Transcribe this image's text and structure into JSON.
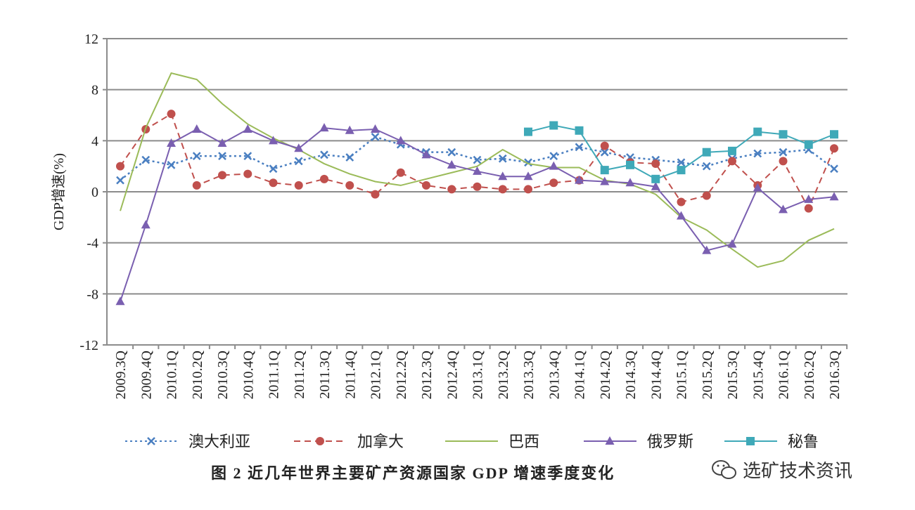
{
  "chart_data": {
    "type": "line",
    "title": "",
    "ylabel": "GDP增速(%)",
    "xlabel": "",
    "ylim": [
      -12,
      12
    ],
    "yticks": [
      12,
      8,
      4,
      0,
      -4,
      -8,
      -12
    ],
    "grid": true,
    "legend_position": "bottom",
    "categories": [
      "2009.3Q",
      "2009.4Q",
      "2010.1Q",
      "2010.2Q",
      "2010.3Q",
      "2010.4Q",
      "2011.1Q",
      "2011.2Q",
      "2011.3Q",
      "2011.4Q",
      "2012.1Q",
      "2012.2Q",
      "2012.3Q",
      "2012.4Q",
      "2013.1Q",
      "2013.2Q",
      "2013.3Q",
      "2013.4Q",
      "2014.1Q",
      "2014.2Q",
      "2014.3Q",
      "2014.4Q",
      "2015.1Q",
      "2015.2Q",
      "2015.3Q",
      "2015.4Q",
      "2016.1Q",
      "2016.2Q",
      "2016.3Q"
    ],
    "series": [
      {
        "name": "澳大利亚",
        "color": "#4a7fc1",
        "dash": "3,4",
        "marker": "x",
        "values": [
          0.9,
          2.5,
          2.1,
          2.8,
          2.8,
          2.8,
          1.8,
          2.4,
          2.9,
          2.7,
          4.3,
          3.7,
          3.1,
          3.1,
          2.5,
          2.6,
          2.3,
          2.8,
          3.5,
          3.1,
          2.7,
          2.5,
          2.3,
          2.0,
          2.6,
          3.0,
          3.1,
          3.3,
          1.8
        ]
      },
      {
        "name": "加拿大",
        "color": "#c0504d",
        "dash": "9,6",
        "marker": "circle",
        "values": [
          2.0,
          4.9,
          6.1,
          0.5,
          1.3,
          1.4,
          0.7,
          0.5,
          1.0,
          0.5,
          -0.2,
          1.5,
          0.5,
          0.2,
          0.4,
          0.2,
          0.2,
          0.7,
          0.9,
          3.6,
          2.3,
          2.2,
          -0.8,
          -0.3,
          2.4,
          0.5,
          2.4,
          -1.3,
          3.4
        ]
      },
      {
        "name": "巴西",
        "color": "#9bbb59",
        "dash": "",
        "marker": "none",
        "values": [
          -1.5,
          5.0,
          9.3,
          8.8,
          6.9,
          5.3,
          4.2,
          3.3,
          2.2,
          1.4,
          0.8,
          0.5,
          1.0,
          1.5,
          2.0,
          3.3,
          2.2,
          1.9,
          1.9,
          0.9,
          0.6,
          -0.2,
          -2.0,
          -3.0,
          -4.5,
          -5.9,
          -5.4,
          -3.8,
          -2.9
        ]
      },
      {
        "name": "俄罗斯",
        "color": "#7a5fb0",
        "dash": "",
        "marker": "triangle",
        "values": [
          -8.6,
          -2.6,
          3.8,
          4.9,
          3.8,
          4.9,
          4.0,
          3.4,
          5.0,
          4.8,
          4.9,
          4.0,
          2.9,
          2.1,
          1.6,
          1.2,
          1.2,
          2.0,
          0.9,
          0.8,
          0.7,
          0.4,
          -1.9,
          -4.6,
          -4.1,
          0.3,
          -1.4,
          -0.6,
          -0.4
        ]
      },
      {
        "name": "秘鲁",
        "color": "#3fa9b8",
        "dash": "",
        "marker": "square",
        "values": [
          null,
          null,
          null,
          null,
          null,
          null,
          null,
          null,
          null,
          null,
          null,
          null,
          null,
          null,
          null,
          null,
          4.7,
          5.2,
          4.8,
          1.7,
          2.1,
          1.0,
          1.7,
          3.1,
          3.2,
          4.7,
          4.5,
          3.7,
          4.5
        ]
      }
    ]
  },
  "caption": "图 2   近几年世界主要矿产资源国家 GDP 增速季度变化",
  "watermark": "选矿技术资讯"
}
